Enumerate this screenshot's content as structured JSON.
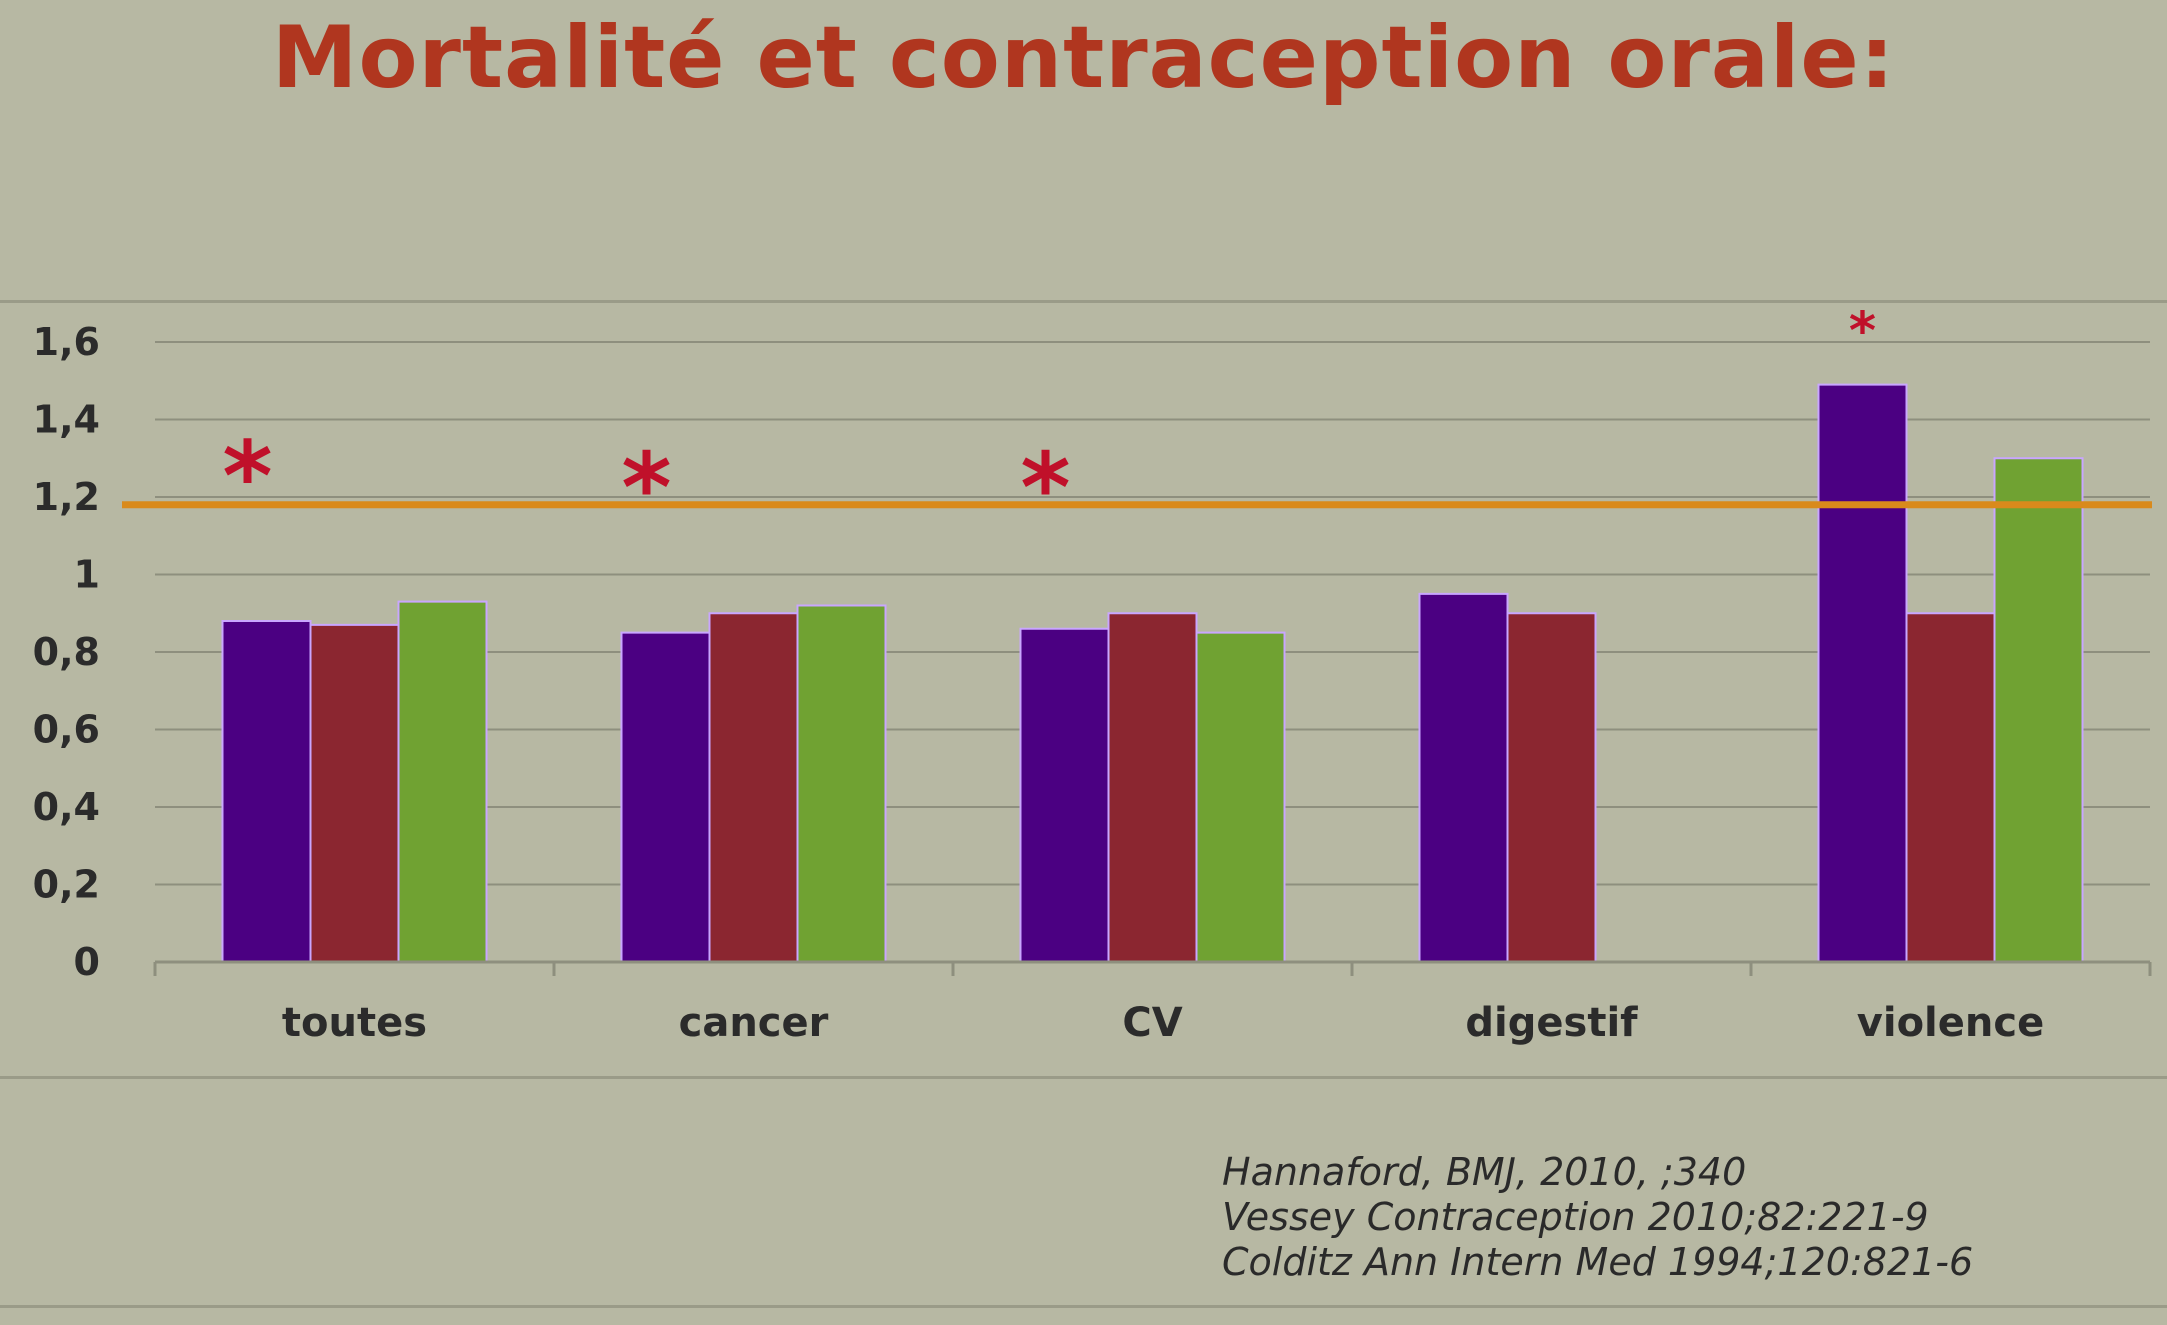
{
  "title": "Mortalité et contraception orale:",
  "references": [
    "Hannaford, BMJ,  2010, ;340",
    "Vessey Contraception 2010;82:221-9",
    "Colditz Ann Intern Med 1994;120:821-6"
  ],
  "chart_data": {
    "type": "bar",
    "categories": [
      "toutes",
      "cancer",
      "CV",
      "digestif",
      "violence"
    ],
    "series": [
      {
        "color": "#4b0082",
        "values": [
          0.88,
          0.85,
          0.86,
          0.95,
          1.49
        ]
      },
      {
        "color": "#8b2630",
        "values": [
          0.87,
          0.9,
          0.9,
          0.9,
          0.9
        ]
      },
      {
        "color": "#70a232",
        "values": [
          0.93,
          0.92,
          0.85,
          null,
          1.3
        ]
      }
    ],
    "y_ticks": [
      "0",
      "0,2",
      "0,4",
      "0,6",
      "0,8",
      "1",
      "1,2",
      "1,4",
      "1,6"
    ],
    "ylim": [
      0,
      1.6
    ],
    "reference_line": {
      "value": 1.18,
      "color": "#d98a1c"
    },
    "significance_markers": [
      {
        "label": "*",
        "category": "toutes",
        "level": 1.27
      },
      {
        "label": "*",
        "category": "cancer",
        "level": 1.24
      },
      {
        "label": "*",
        "category": "CV",
        "level": 1.24
      },
      {
        "label": "*",
        "category": "violence",
        "level": 1.63
      }
    ],
    "grid": true
  }
}
